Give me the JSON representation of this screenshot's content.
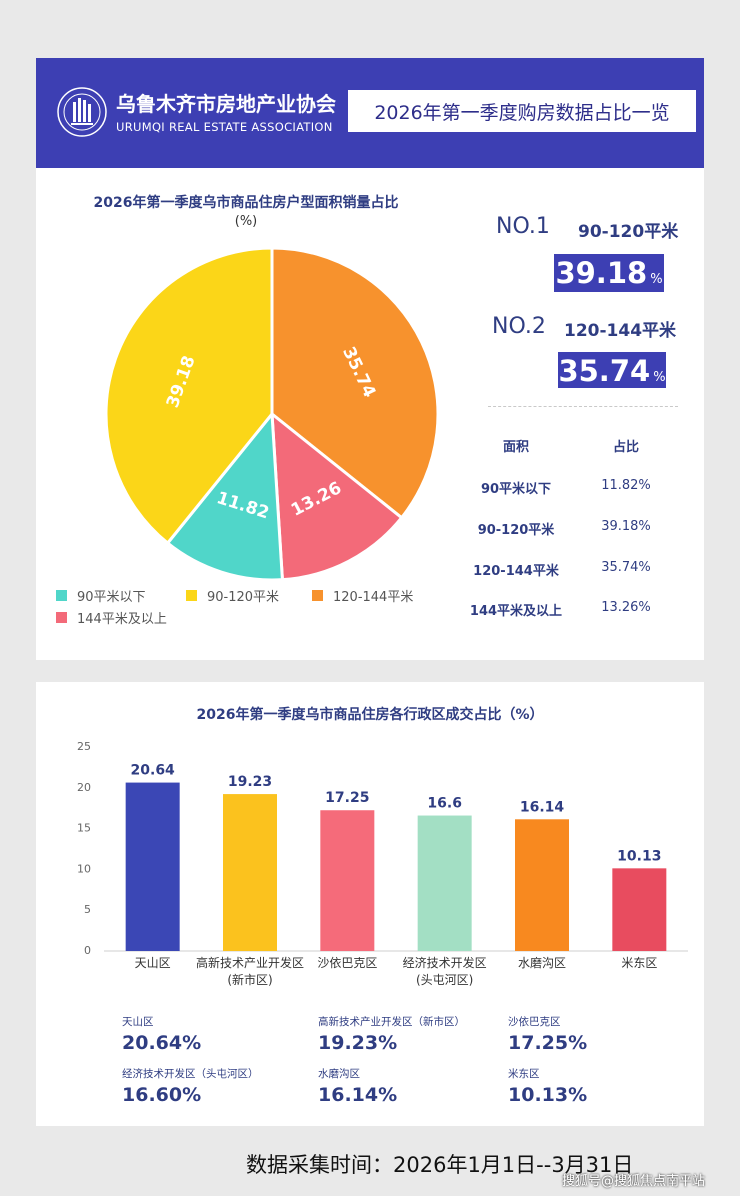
{
  "header": {
    "association_cn": "乌鲁木齐市房地产业协会",
    "association_en": "URUMQI REAL ESTATE ASSOCIATION",
    "title": "2026年第一季度购房数据占比一览",
    "logo": "urumqi-real-estate-association-logo"
  },
  "pie_panel": {
    "title": "2026年第一季度乌市商品住房户型面积销量占比",
    "unit": "(%)",
    "ranks": [
      {
        "label": "NO.1",
        "range": "90-120平米",
        "value": "39.18",
        "pct": "%"
      },
      {
        "label": "NO.2",
        "range": "120-144平米",
        "value": "35.74",
        "pct": "%"
      }
    ],
    "table": {
      "header_area": "面积",
      "header_share": "占比",
      "rows": [
        {
          "area": "90平米以下",
          "share": "11.82%"
        },
        {
          "area": "90-120平米",
          "share": "39.18%"
        },
        {
          "area": "120-144平米",
          "share": "35.74%"
        },
        {
          "area": "144平米及以上",
          "share": "13.26%"
        }
      ]
    }
  },
  "bar_panel": {
    "title": "2026年第一季度乌市商品住房各行政区成交占比（%）",
    "summary": [
      {
        "name": "天山区",
        "value": "20.64%"
      },
      {
        "name": "高新技术产业开发区（新市区）",
        "value": "19.23%"
      },
      {
        "name": "沙依巴克区",
        "value": "17.25%"
      },
      {
        "name": "经济技术开发区（头屯河区）",
        "value": "16.60%"
      },
      {
        "name": "水磨沟区",
        "value": "16.14%"
      },
      {
        "name": "米东区",
        "value": "10.13%"
      }
    ]
  },
  "footer": {
    "collection_date": "数据采集时间：2026年1月1日--3月31日",
    "watermark": "搜狐号@搜狐焦点南平站"
  },
  "colors": {
    "brand_blue": "#3d3fb3",
    "navy_text": "#2f3d82"
  },
  "chart_data": [
    {
      "type": "pie",
      "title": "2026年第一季度乌市商品住房户型面积销量占比",
      "unit": "(%)",
      "legend": "bottom",
      "slices": [
        {
          "label": "90平米以下",
          "value": 11.82,
          "color": "#50d6c9"
        },
        {
          "label": "90-120平米",
          "value": 39.18,
          "color": "#fbd618"
        },
        {
          "label": "120-144平米",
          "value": 35.74,
          "color": "#f7922d"
        },
        {
          "label": "144平米及以上",
          "value": 13.26,
          "color": "#f36a79"
        }
      ],
      "value_labels": [
        "11.82",
        "39.18",
        "35.74",
        "13.26"
      ]
    },
    {
      "type": "bar",
      "title": "2026年第一季度乌市商品住房各行政区成交占比（%）",
      "categories": [
        [
          "天山区"
        ],
        [
          "高新技术产业开发区",
          "(新市区)"
        ],
        [
          "沙依巴克区"
        ],
        [
          "经济技术开发区",
          "(头屯河区)"
        ],
        [
          "水磨沟区"
        ],
        [
          "米东区"
        ]
      ],
      "values": [
        20.64,
        19.23,
        17.25,
        16.6,
        16.14,
        10.13
      ],
      "value_labels": [
        "20.64",
        "19.23",
        "17.25",
        "16.6",
        "16.14",
        "10.13"
      ],
      "colors": [
        "#3b47b5",
        "#fbc21e",
        "#f56b7a",
        "#a3dfc4",
        "#f8891f",
        "#e84c5f"
      ],
      "yticks": [
        "0",
        "5",
        "10",
        "15",
        "20",
        "25"
      ],
      "ylim": [
        0,
        25
      ],
      "grid": false
    }
  ]
}
